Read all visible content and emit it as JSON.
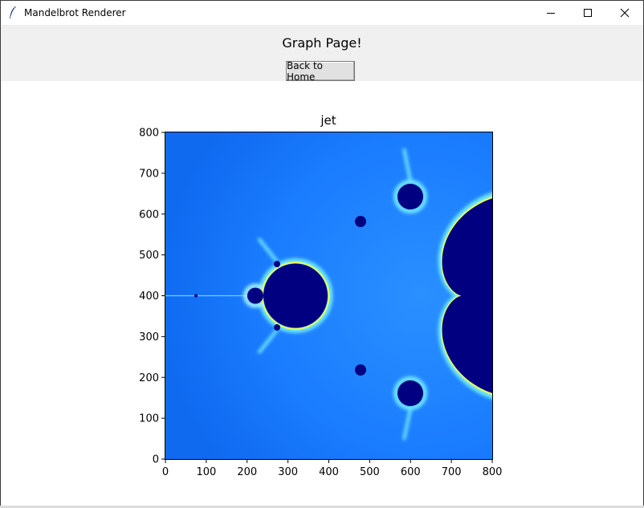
{
  "window": {
    "title": "Mandelbrot Renderer",
    "controls": [
      "minimize",
      "maximize",
      "close"
    ]
  },
  "page": {
    "heading": "Graph Page!",
    "back_button": "Back to Home"
  },
  "chart_data": {
    "type": "heatmap",
    "title": "jet",
    "colormap": "jet",
    "xlabel": "",
    "ylabel": "",
    "xlim": [
      0,
      800
    ],
    "ylim": [
      0,
      800
    ],
    "xticks": [
      "0",
      "100",
      "200",
      "300",
      "400",
      "500",
      "600",
      "700",
      "800"
    ],
    "yticks": [
      "0",
      "100",
      "200",
      "300",
      "400",
      "500",
      "600",
      "700",
      "800"
    ],
    "grid": false,
    "content": "Mandelbrot set escape-time image",
    "colors": {
      "set_interior": "#000080",
      "background": "#1a7cff",
      "boundary_high": "#ffff33"
    }
  }
}
